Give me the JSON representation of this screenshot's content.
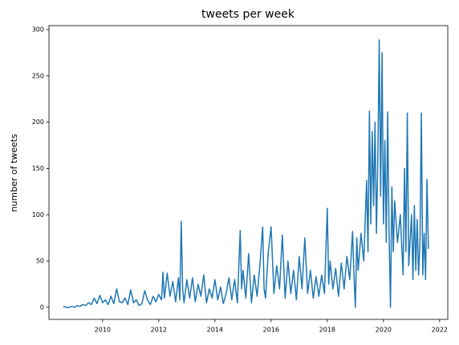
{
  "chart_data": {
    "type": "line",
    "title": "tweets per week",
    "ylabel": "number of tweets",
    "x": [
      2008.6,
      2008.7,
      2008.8,
      2008.9,
      2009.0,
      2009.1,
      2009.2,
      2009.3,
      2009.4,
      2009.5,
      2009.6,
      2009.7,
      2009.8,
      2009.9,
      2010.0,
      2010.1,
      2010.2,
      2010.3,
      2010.4,
      2010.5,
      2010.6,
      2010.7,
      2010.8,
      2010.9,
      2011.0,
      2011.1,
      2011.2,
      2011.3,
      2011.4,
      2011.5,
      2011.6,
      2011.7,
      2011.8,
      2011.9,
      2012.0,
      2012.1,
      2012.15,
      2012.2,
      2012.3,
      2012.4,
      2012.5,
      2012.6,
      2012.7,
      2012.75,
      2012.8,
      2012.85,
      2012.9,
      2013.0,
      2013.1,
      2013.2,
      2013.3,
      2013.4,
      2013.5,
      2013.6,
      2013.7,
      2013.8,
      2013.9,
      2014.0,
      2014.1,
      2014.2,
      2014.3,
      2014.4,
      2014.5,
      2014.6,
      2014.7,
      2014.8,
      2014.9,
      2014.95,
      2015.0,
      2015.1,
      2015.2,
      2015.3,
      2015.4,
      2015.5,
      2015.6,
      2015.7,
      2015.75,
      2015.8,
      2015.9,
      2016.0,
      2016.1,
      2016.2,
      2016.3,
      2016.4,
      2016.5,
      2016.6,
      2016.7,
      2016.8,
      2016.9,
      2017.0,
      2017.1,
      2017.2,
      2017.3,
      2017.4,
      2017.5,
      2017.6,
      2017.7,
      2017.8,
      2017.9,
      2018.0,
      2018.05,
      2018.1,
      2018.2,
      2018.3,
      2018.4,
      2018.5,
      2018.6,
      2018.7,
      2018.8,
      2018.9,
      2018.95,
      2019.0,
      2019.05,
      2019.1,
      2019.2,
      2019.3,
      2019.4,
      2019.45,
      2019.5,
      2019.55,
      2019.6,
      2019.65,
      2019.7,
      2019.75,
      2019.8,
      2019.85,
      2019.9,
      2019.95,
      2020.0,
      2020.05,
      2020.1,
      2020.15,
      2020.2,
      2020.25,
      2020.3,
      2020.35,
      2020.4,
      2020.5,
      2020.6,
      2020.7,
      2020.75,
      2020.8,
      2020.85,
      2020.9,
      2021.0,
      2021.05,
      2021.1,
      2021.15,
      2021.2,
      2021.25,
      2021.3,
      2021.35,
      2021.4,
      2021.45,
      2021.5,
      2021.55,
      2021.6
    ],
    "series": [
      {
        "color": "#1f77b4",
        "values": [
          1,
          0,
          0,
          1,
          0,
          2,
          1,
          3,
          2,
          5,
          3,
          10,
          4,
          13,
          5,
          8,
          3,
          12,
          4,
          20,
          6,
          5,
          10,
          3,
          19,
          5,
          8,
          2,
          4,
          18,
          8,
          3,
          12,
          6,
          14,
          8,
          38,
          10,
          37,
          12,
          28,
          6,
          32,
          8,
          93,
          20,
          5,
          30,
          10,
          32,
          6,
          25,
          12,
          35,
          5,
          20,
          10,
          30,
          8,
          22,
          4,
          15,
          32,
          8,
          30,
          5,
          83,
          20,
          40,
          10,
          58,
          5,
          35,
          12,
          45,
          87,
          20,
          10,
          60,
          87,
          15,
          45,
          20,
          78,
          10,
          50,
          15,
          40,
          8,
          55,
          20,
          75,
          15,
          40,
          10,
          33,
          12,
          35,
          15,
          107,
          25,
          50,
          20,
          42,
          12,
          48,
          20,
          55,
          30,
          82,
          35,
          0,
          75,
          40,
          80,
          50,
          137,
          60,
          212,
          90,
          190,
          110,
          200,
          80,
          160,
          289,
          120,
          275,
          90,
          180,
          70,
          211,
          80,
          0,
          130,
          60,
          115,
          70,
          100,
          35,
          150,
          60,
          210,
          45,
          100,
          30,
          110,
          40,
          95,
          35,
          70,
          210,
          35,
          80,
          30,
          138,
          63
        ]
      }
    ],
    "xlim": [
      2008.09,
      2022.29
    ],
    "ylim": [
      -13,
      304.3
    ],
    "xticks": [
      2010,
      2012,
      2014,
      2016,
      2018,
      2020,
      2022
    ],
    "yticks": [
      0,
      50,
      100,
      150,
      200,
      250,
      300
    ]
  }
}
